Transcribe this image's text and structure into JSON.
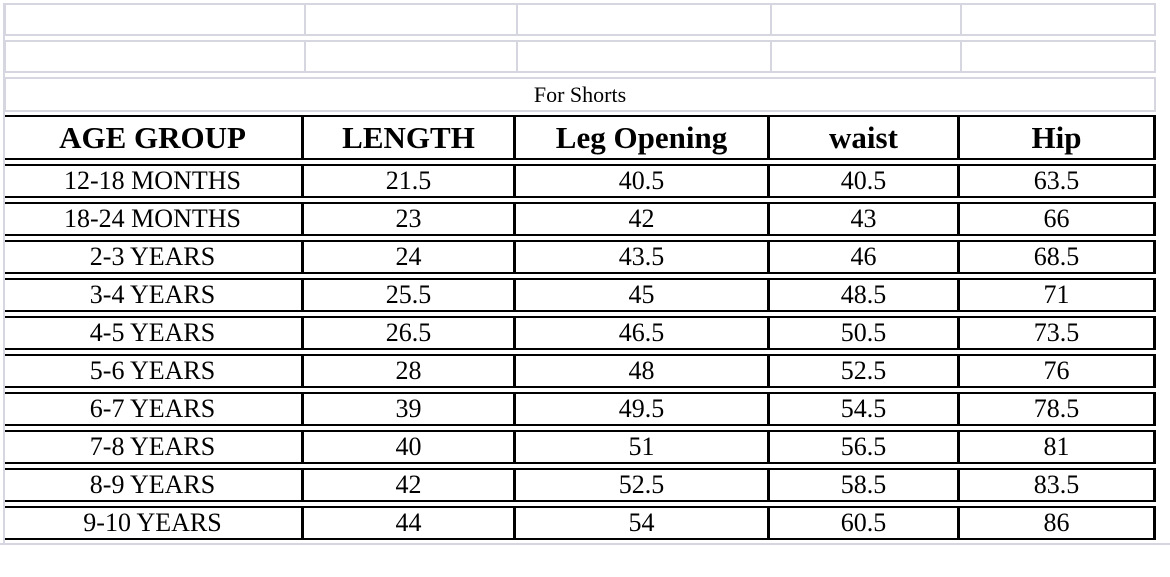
{
  "sheet": {
    "section_title": "For Shorts",
    "table": {
      "columns": [
        "AGE GROUP",
        "LENGTH",
        "Leg Opening",
        "waist",
        "Hip"
      ],
      "rows": [
        [
          "12-18 MONTHS",
          "21.5",
          "40.5",
          "40.5",
          "63.5"
        ],
        [
          "18-24 MONTHS",
          "23",
          "42",
          "43",
          "66"
        ],
        [
          "2-3 YEARS",
          "24",
          "43.5",
          "46",
          "68.5"
        ],
        [
          "3-4 YEARS",
          "25.5",
          "45",
          "48.5",
          "71"
        ],
        [
          "4-5 YEARS",
          "26.5",
          "46.5",
          "50.5",
          "73.5"
        ],
        [
          "5-6 YEARS",
          "28",
          "48",
          "52.5",
          "76"
        ],
        [
          "6-7 YEARS",
          "39",
          "49.5",
          "54.5",
          "78.5"
        ],
        [
          "7-8 YEARS",
          "40",
          "51",
          "56.5",
          "81"
        ],
        [
          "8-9 YEARS",
          "42",
          "52.5",
          "58.5",
          "83.5"
        ],
        [
          "9-10 YEARS",
          "44",
          "54",
          "60.5",
          "86"
        ]
      ]
    },
    "colors": {
      "gridline": "#d6d6e0",
      "table_border": "#000000",
      "text": "#000000",
      "background": "#ffffff"
    }
  }
}
